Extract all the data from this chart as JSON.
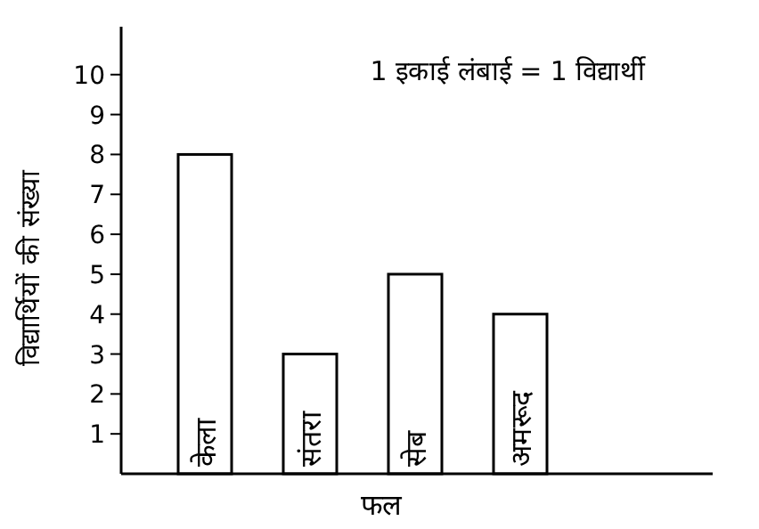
{
  "chart_data": {
    "type": "bar",
    "categories": [
      "केला",
      "संतरा",
      "सेब",
      "अमरूद"
    ],
    "values": [
      8,
      3,
      5,
      4
    ],
    "color": "#ffffff",
    "ylim": [
      0,
      11.2
    ],
    "yticks": [
      1,
      2,
      3,
      4,
      5,
      6,
      7,
      8,
      9,
      10
    ],
    "xlabel": "फल",
    "ylabel": "विद्यार्थियों की संख्या",
    "annotations": [
      "1 इकाई लंबाई = 1 विद्यार्थी"
    ],
    "grid": false
  }
}
